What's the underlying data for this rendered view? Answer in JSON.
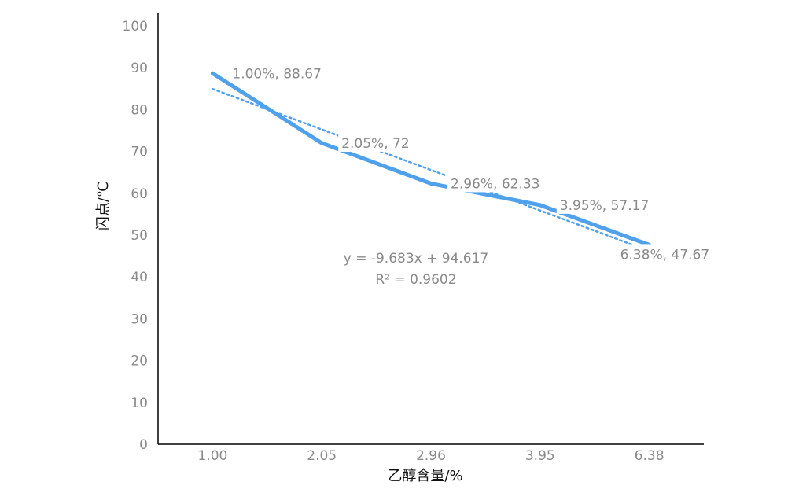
{
  "chart_data": {
    "type": "line",
    "categories": [
      "1.00",
      "2.05",
      "2.96",
      "3.95",
      "6.38"
    ],
    "series": [
      {
        "values": [
          88.67,
          72,
          62.33,
          57.17,
          47.67
        ],
        "color": "#4ea1ea"
      }
    ],
    "data_labels": [
      "1.00%, 88.67",
      "2.05%, 72",
      "2.96%, 62.33",
      "3.95%, 57.17",
      "6.38%, 47.67"
    ],
    "trendline": {
      "type": "linear",
      "slope": -9.683,
      "intercept": 94.617,
      "equation": "y = -9.683x + 94.617",
      "r_squared": "R² = 0.9602",
      "color": "#4ea1ea",
      "style": "dotted"
    },
    "xlabel": "乙醇含量/%",
    "ylabel": "闪点/℃",
    "ylim": [
      0,
      100
    ],
    "yticks": [
      "0",
      "10",
      "20",
      "30",
      "40",
      "50",
      "60",
      "70",
      "80",
      "90",
      "100"
    ],
    "grid": false
  }
}
